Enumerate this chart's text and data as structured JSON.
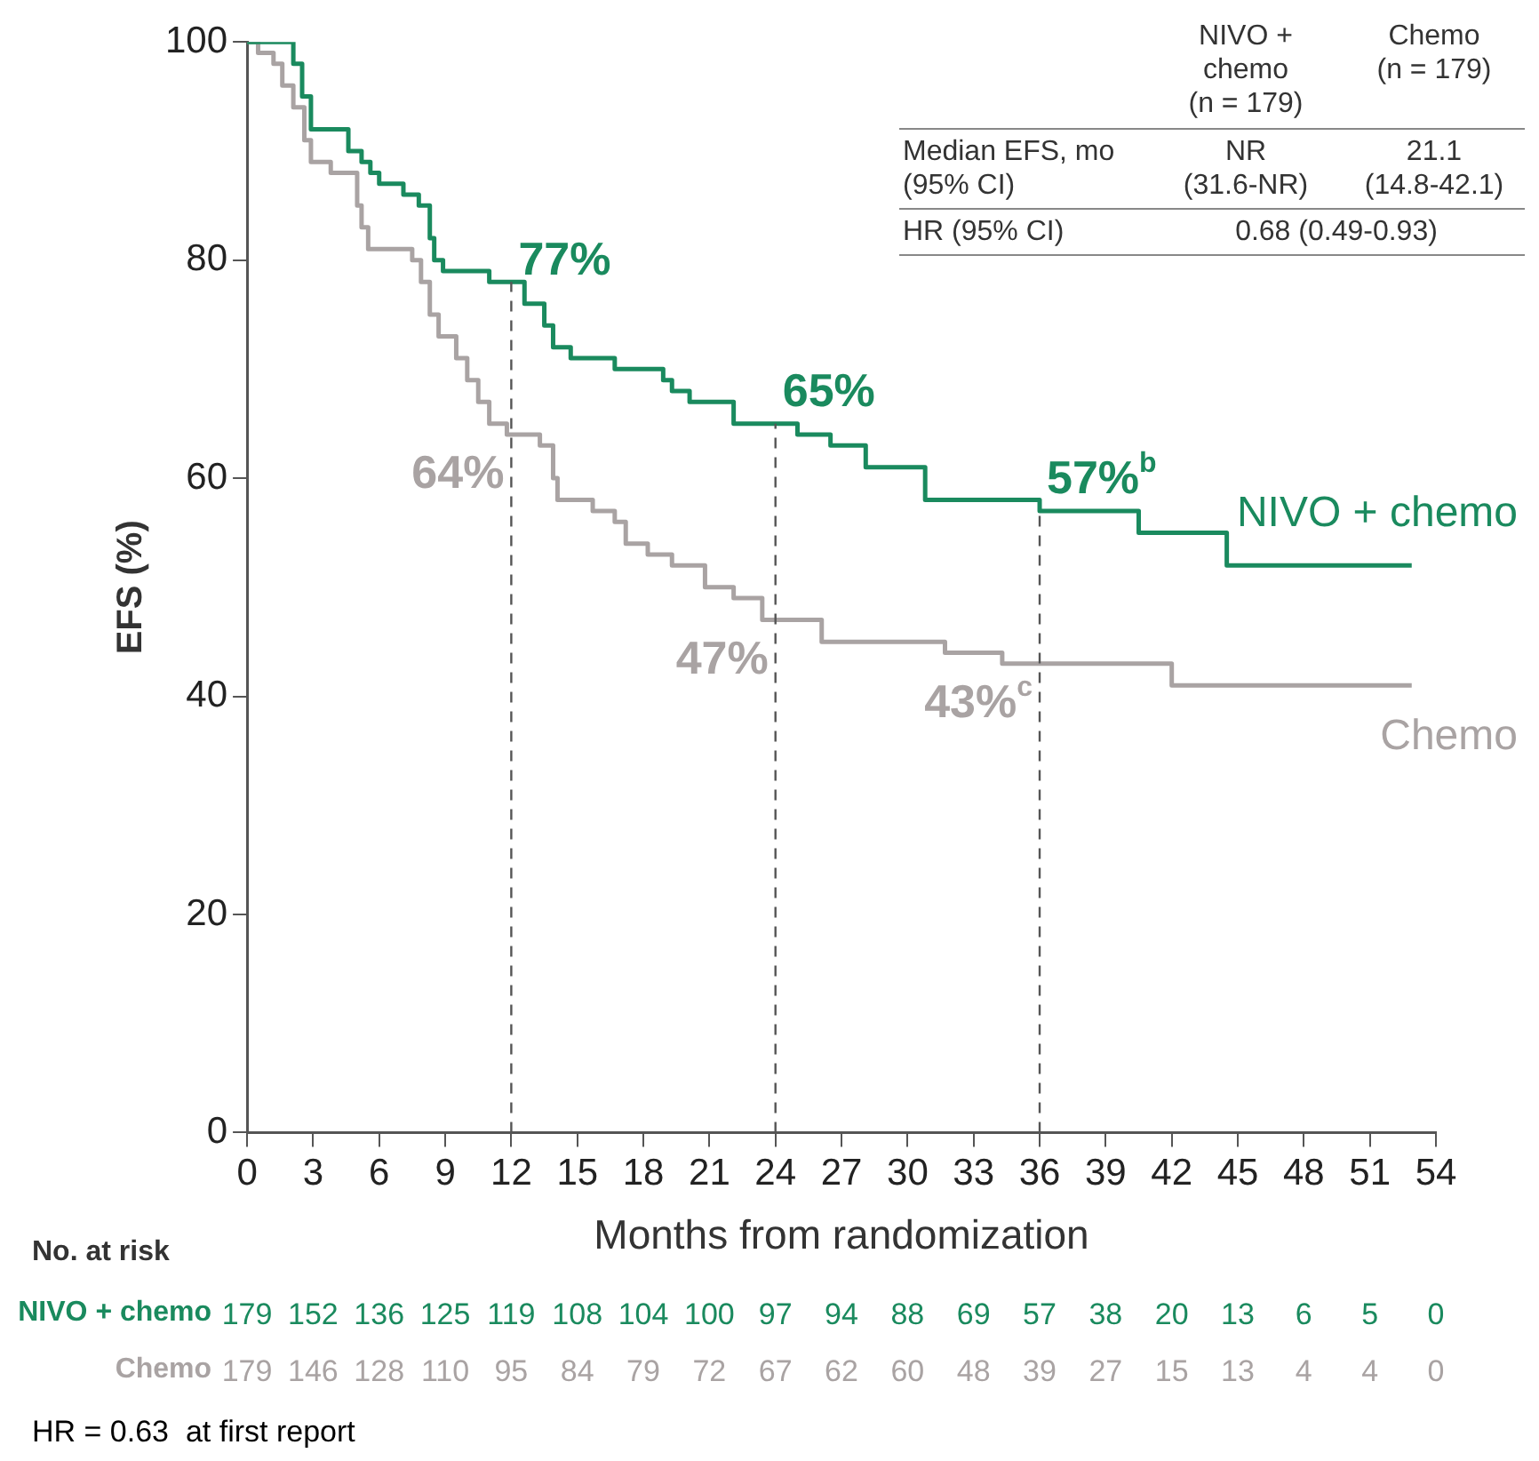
{
  "chart_data": {
    "type": "step",
    "xlabel": "Months from randomization",
    "ylabel": "EFS (%)",
    "xlim": [
      0,
      54
    ],
    "xticks": [
      0,
      3,
      6,
      9,
      12,
      15,
      18,
      21,
      24,
      27,
      30,
      33,
      36,
      39,
      42,
      45,
      48,
      51,
      54
    ],
    "ylim": [
      0,
      100
    ],
    "yticks": [
      0,
      20,
      40,
      60,
      80,
      100
    ],
    "grid": false,
    "legend": false,
    "marker": "none",
    "line_style": "solid",
    "series": [
      {
        "name": "NIVO + chemo",
        "color": "#1a8a5e",
        "x": [
          0,
          2.1,
          2.5,
          2.9,
          4.6,
          5.2,
          5.6,
          6,
          7.1,
          7.8,
          8.3,
          8.5,
          8.9,
          11,
          12.6,
          13.5,
          13.9,
          14.7,
          16.7,
          18.9,
          19.3,
          20.1,
          22.1,
          25,
          26.5,
          28.1,
          30.8,
          36,
          40.5,
          44.5,
          52.9
        ],
        "values": [
          100,
          98,
          95,
          92,
          90,
          89,
          88,
          87,
          86,
          85,
          82,
          80,
          79,
          78,
          76,
          74,
          72,
          71,
          70,
          69,
          68,
          67,
          65,
          64,
          63,
          61,
          58,
          57,
          55,
          52,
          52
        ]
      },
      {
        "name": "Chemo",
        "color": "#a9a3a3",
        "x": [
          0,
          0.5,
          1.2,
          1.6,
          2.1,
          2.6,
          2.9,
          3.8,
          5,
          5.2,
          5.5,
          7.5,
          7.9,
          8.3,
          8.7,
          9.5,
          10,
          10.5,
          11,
          11.8,
          13.3,
          13.9,
          14.1,
          15.7,
          16.7,
          17.2,
          18.2,
          19.3,
          20.8,
          22.1,
          23.4,
          26.1,
          31.7,
          34.3,
          42,
          52.9
        ],
        "values": [
          100,
          99,
          98,
          96,
          94,
          91,
          89,
          88,
          85,
          83,
          81,
          80,
          78,
          75,
          73,
          71,
          69,
          67,
          65,
          64,
          63,
          60,
          58,
          57,
          56,
          54,
          53,
          52,
          50,
          49,
          47,
          45,
          44,
          43,
          41,
          41
        ]
      }
    ],
    "ref_lines": [
      {
        "axis": "x",
        "value": 12,
        "line_style": "dashed",
        "color": "#555555"
      },
      {
        "axis": "x",
        "value": 24,
        "line_style": "dashed",
        "color": "#555555"
      },
      {
        "axis": "x",
        "value": 36,
        "line_style": "dashed",
        "color": "#555555"
      }
    ],
    "annotations": [
      {
        "text": "77%",
        "x": 12,
        "y": 77
      },
      {
        "text": "64%",
        "x": 12,
        "y": 64
      },
      {
        "text": "65%",
        "x": 24,
        "y": 65
      },
      {
        "text": "47%",
        "x": 24,
        "y": 47
      },
      {
        "text": "57%$^{b}$",
        "x": 36,
        "y": 57
      },
      {
        "text": "43%$^{c}$",
        "x": 36,
        "y": 43
      },
      "NIVO + chemo (n = 179)",
      "Chemo (n = 179)",
      "Median EFS, mo (95% CI)",
      "NR (31.6-NR)",
      "21.1 (14.8-42.1)",
      "HR (95% CI)",
      "0.68 (0.49-0.93)",
      "No. at risk",
      "NIVO + chemo",
      "179 152 136 125 119 108 104 100 97 94 88 69 57 38 20 13 6 5 0",
      "Chemo",
      "179 146 128 110 95 84 79 72 67 62 60 48 39 27 15 13 4 4 0",
      "HR = 0.63  at first report"
    ]
  }
}
